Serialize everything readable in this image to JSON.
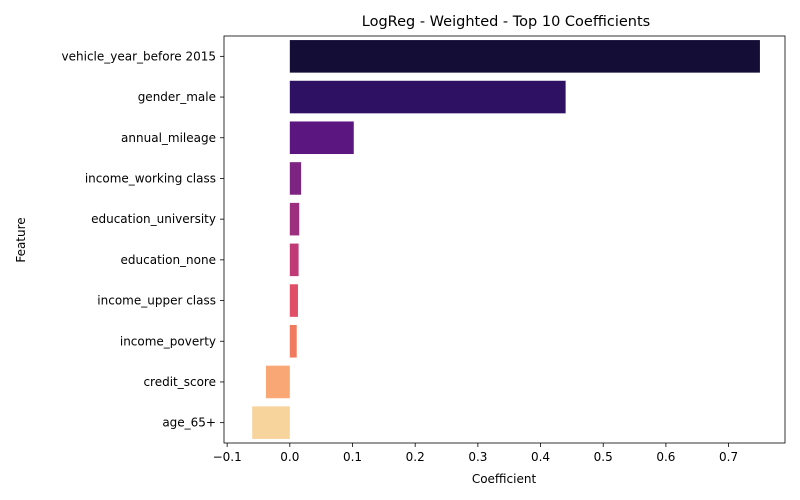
{
  "chart_data": {
    "type": "bar",
    "orientation": "horizontal",
    "title": "LogReg - Weighted - Top 10 Coefficients",
    "xlabel": "Coefficient",
    "ylabel": "Feature",
    "xlim": [
      -0.105,
      0.79
    ],
    "xticks": [
      -0.1,
      0.0,
      0.1,
      0.2,
      0.3,
      0.4,
      0.5,
      0.6,
      0.7
    ],
    "xtick_labels": [
      "−0.1",
      "0.0",
      "0.1",
      "0.2",
      "0.3",
      "0.4",
      "0.5",
      "0.6",
      "0.7"
    ],
    "grid": false,
    "categories": [
      "vehicle_year_before 2015",
      "gender_male",
      "annual_mileage",
      "income_working class",
      "education_university",
      "education_none",
      "income_upper class",
      "income_poverty",
      "credit_score",
      "age_65+"
    ],
    "values": [
      0.75,
      0.44,
      0.102,
      0.018,
      0.015,
      0.014,
      0.013,
      0.011,
      -0.038,
      -0.06
    ],
    "colors": [
      "#140e36",
      "#2f1163",
      "#5c167f",
      "#7d2482",
      "#9d2f7f",
      "#c03a76",
      "#e04f67",
      "#f1795d",
      "#f9a774",
      "#f6d49b"
    ]
  }
}
